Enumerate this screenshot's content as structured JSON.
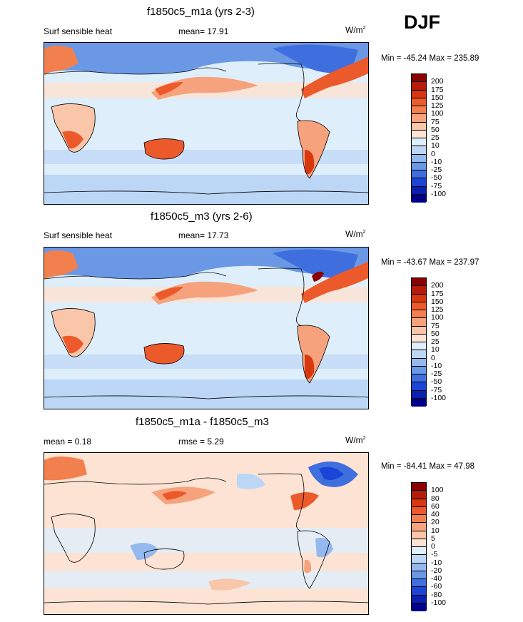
{
  "season": "DJF",
  "panels": [
    {
      "title": "f1850c5_m1a (yrs 2-3)",
      "left_label": "Surf sensible heat",
      "center_label": "mean=  17.91",
      "units": "W/m",
      "units_sup": "2",
      "minmax": "Min = -45.24 Max = 235.89",
      "colorbar": {
        "labels": [
          "200",
          "175",
          "150",
          "125",
          "100",
          "75",
          "50",
          "25",
          "10",
          "0",
          "-10",
          "-25",
          "-50",
          "-75",
          "-100"
        ],
        "colors": [
          "#8b0000",
          "#b51c09",
          "#d9380f",
          "#ec5a2b",
          "#f2804f",
          "#f6a27d",
          "#f9c6aa",
          "#fce3d3",
          "#dfeefb",
          "#bcd6f6",
          "#94b9ee",
          "#6a98e5",
          "#3f6fdf",
          "#1b45d6",
          "#0a20b2",
          "#00008b"
        ]
      }
    },
    {
      "title": "f1850c5_m3 (yrs 2-6)",
      "left_label": "Surf sensible heat",
      "center_label": "mean=  17.73",
      "units": "W/m",
      "units_sup": "2",
      "minmax": "Min = -43.67 Max = 237.97",
      "colorbar": {
        "labels": [
          "200",
          "175",
          "150",
          "125",
          "100",
          "75",
          "50",
          "25",
          "10",
          "0",
          "-10",
          "-25",
          "-50",
          "-75",
          "-100"
        ],
        "colors": [
          "#8b0000",
          "#b51c09",
          "#d9380f",
          "#ec5a2b",
          "#f2804f",
          "#f6a27d",
          "#f9c6aa",
          "#fce3d3",
          "#dfeefb",
          "#bcd6f6",
          "#94b9ee",
          "#6a98e5",
          "#3f6fdf",
          "#1b45d6",
          "#0a20b2",
          "#00008b"
        ]
      }
    },
    {
      "title": "f1850c5_m1a - f1850c5_m3",
      "left_label": "mean =   0.18",
      "center_label": "rmse =   5.29",
      "units": "W/m",
      "units_sup": "2",
      "minmax": "Min = -84.41 Max =  47.98",
      "colorbar": {
        "labels": [
          "100",
          "80",
          "60",
          "40",
          "20",
          "10",
          "5",
          "0",
          "-5",
          "-10",
          "-20",
          "-40",
          "-60",
          "-80",
          "-100"
        ],
        "colors": [
          "#8b0000",
          "#b51c09",
          "#d9380f",
          "#ec5a2b",
          "#f2804f",
          "#f6a27d",
          "#f9c6aa",
          "#fce3d3",
          "#dfeefb",
          "#bcd6f6",
          "#94b9ee",
          "#6a98e5",
          "#3f6fdf",
          "#1b45d6",
          "#0a20b2",
          "#00008b"
        ]
      }
    }
  ],
  "chart_data": {
    "type": "heatmap",
    "variable": "Surf sensible heat",
    "season": "DJF",
    "units": "W/m2",
    "panels": [
      {
        "case": "f1850c5_m1a (yrs 2-3)",
        "mean": 17.91,
        "min": -45.24,
        "max": 235.89,
        "contour_levels": [
          200,
          175,
          150,
          125,
          100,
          75,
          50,
          25,
          10,
          0,
          -10,
          -25,
          -50,
          -75,
          -100
        ]
      },
      {
        "case": "f1850c5_m3 (yrs 2-6)",
        "mean": 17.73,
        "min": -43.67,
        "max": 237.97,
        "contour_levels": [
          200,
          175,
          150,
          125,
          100,
          75,
          50,
          25,
          10,
          0,
          -10,
          -25,
          -50,
          -75,
          -100
        ]
      },
      {
        "case": "f1850c5_m1a - f1850c5_m3",
        "mean": 0.18,
        "rmse": 5.29,
        "min": -84.41,
        "max": 47.98,
        "contour_levels": [
          100,
          80,
          60,
          40,
          20,
          10,
          5,
          0,
          -5,
          -10,
          -20,
          -40,
          -60,
          -80,
          -100
        ]
      }
    ]
  }
}
